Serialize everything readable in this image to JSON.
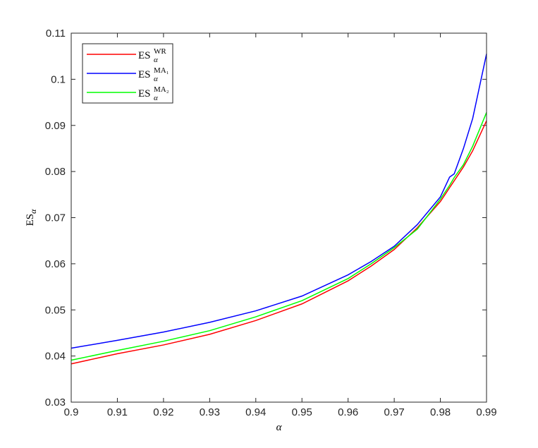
{
  "chart_data": {
    "type": "line",
    "x_label": "α",
    "y_label": {
      "main": "ES",
      "sub": "α"
    },
    "x": [
      0.9,
      0.91,
      0.92,
      0.93,
      0.94,
      0.95,
      0.96,
      0.965,
      0.97,
      0.975,
      0.98,
      0.982,
      0.983,
      0.985,
      0.987,
      0.99
    ],
    "series": [
      {
        "name": "ES",
        "sub": "α",
        "sup": "WR",
        "color": "#ff0000",
        "values": [
          0.0383,
          0.0405,
          0.0424,
          0.0447,
          0.0477,
          0.0513,
          0.0563,
          0.0595,
          0.0631,
          0.0678,
          0.0735,
          0.0765,
          0.078,
          0.081,
          0.0845,
          0.091
        ]
      },
      {
        "name": "ES",
        "sub": "α",
        "sup": "MA₁",
        "color": "#0000ff",
        "values": [
          0.0417,
          0.0434,
          0.0452,
          0.0473,
          0.0498,
          0.053,
          0.0576,
          0.0605,
          0.0638,
          0.0685,
          0.0745,
          0.0788,
          0.0795,
          0.085,
          0.0915,
          0.1055
        ]
      },
      {
        "name": "ES",
        "sub": "α",
        "sup": "MA₂",
        "color": "#00ff00",
        "values": [
          0.0391,
          0.0412,
          0.0432,
          0.0455,
          0.0485,
          0.052,
          0.0568,
          0.06,
          0.0635,
          0.0675,
          0.074,
          0.077,
          0.0787,
          0.0815,
          0.0855,
          0.0928
        ]
      }
    ],
    "xlim": [
      0.9,
      0.99
    ],
    "xticks": [
      0.9,
      0.91,
      0.92,
      0.93,
      0.94,
      0.95,
      0.96,
      0.97,
      0.98,
      0.99
    ],
    "ylim": [
      0.03,
      0.11
    ],
    "yticks": [
      0.03,
      0.04,
      0.05,
      0.06,
      0.07,
      0.08,
      0.09,
      0.1,
      0.11
    ],
    "grid": false,
    "legend": "upper left"
  }
}
